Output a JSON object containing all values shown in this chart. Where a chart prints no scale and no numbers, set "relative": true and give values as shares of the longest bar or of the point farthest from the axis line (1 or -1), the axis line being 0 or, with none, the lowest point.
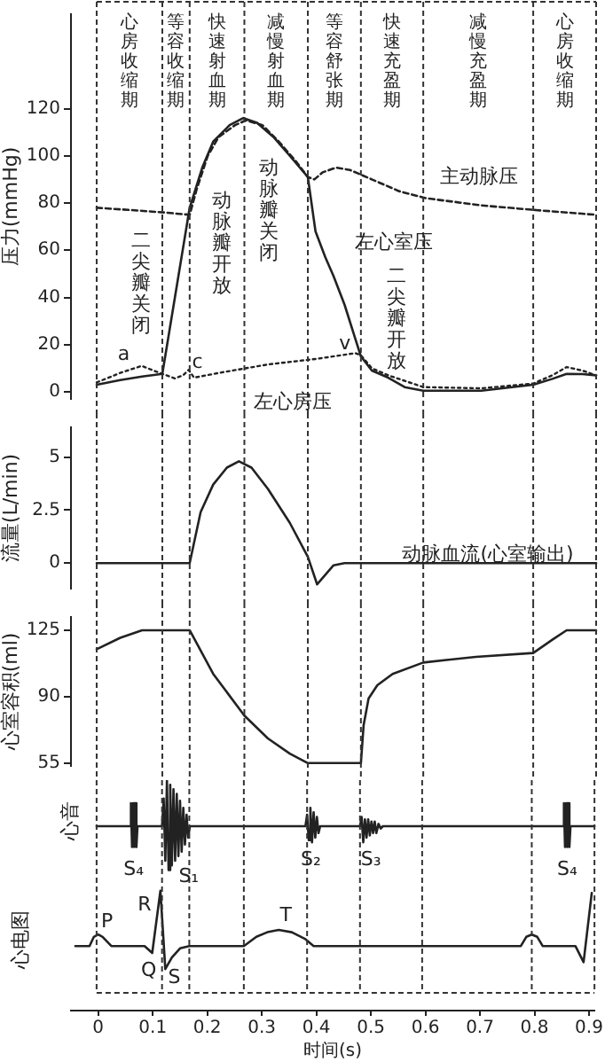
{
  "chart_data": [
    {
      "type": "line",
      "ylabel": "压力(mmHg)",
      "xlim": [
        -0.05,
        0.91
      ],
      "ylim": [
        -3,
        160
      ],
      "yticks": [
        0,
        20,
        40,
        60,
        80,
        100,
        120
      ],
      "tick_labels": "y",
      "grid": false,
      "legend": false,
      "series": [
        {
          "name": "主动脉压",
          "color": "#222222",
          "line_style": "dashed",
          "x": [
            -0.003,
            0.06,
            0.12,
            0.167,
            0.18,
            0.2,
            0.22,
            0.25,
            0.27,
            0.3,
            0.33,
            0.36,
            0.383,
            0.395,
            0.41,
            0.435,
            0.46,
            0.5,
            0.55,
            0.6,
            0.7,
            0.8,
            0.91
          ],
          "values": [
            78,
            77,
            76,
            75,
            86,
            100,
            108,
            113,
            115,
            113,
            106,
            98,
            91,
            90,
            93,
            95,
            94,
            90,
            85,
            82,
            79,
            77,
            75
          ]
        },
        {
          "name": "左心室压",
          "color": "#222222",
          "line_style": "solid",
          "x": [
            -0.003,
            0.04,
            0.08,
            0.117,
            0.14,
            0.167,
            0.19,
            0.21,
            0.24,
            0.265,
            0.29,
            0.32,
            0.35,
            0.383,
            0.397,
            0.415,
            0.43,
            0.45,
            0.48,
            0.5,
            0.53,
            0.56,
            0.594,
            0.7,
            0.795,
            0.83,
            0.856,
            0.885,
            0.91
          ],
          "values": [
            3,
            5,
            6.5,
            7.6,
            40,
            78,
            95,
            106,
            113,
            116,
            114,
            108,
            100,
            91,
            68,
            57,
            49,
            37,
            15,
            9,
            6,
            2,
            0.5,
            0.5,
            3,
            5.5,
            7.6,
            7.5,
            7
          ]
        },
        {
          "name": "左心房压",
          "color": "#222222",
          "line_style": "dotted",
          "x": [
            -0.003,
            0.04,
            0.079,
            0.117,
            0.14,
            0.155,
            0.165,
            0.175,
            0.22,
            0.31,
            0.4,
            0.47,
            0.48,
            0.5,
            0.53,
            0.594,
            0.7,
            0.795,
            0.83,
            0.856,
            0.885,
            0.91
          ],
          "values": [
            4,
            8,
            11,
            7.6,
            5.7,
            7,
            9.3,
            6,
            8,
            11.6,
            14,
            16.4,
            15.5,
            10,
            7,
            2,
            1.5,
            3.5,
            7,
            10.5,
            9,
            7
          ]
        }
      ],
      "ref_lines": [
        {
          "axis": "x",
          "value": -0.003,
          "line_style": "dashed"
        },
        {
          "axis": "x",
          "value": 0.117,
          "line_style": "dashed"
        },
        {
          "axis": "x",
          "value": 0.167,
          "line_style": "dashed"
        },
        {
          "axis": "x",
          "value": 0.267,
          "line_style": "dashed"
        },
        {
          "axis": "x",
          "value": 0.383,
          "line_style": "dashed"
        },
        {
          "axis": "x",
          "value": 0.48,
          "line_style": "dashed"
        },
        {
          "axis": "x",
          "value": 0.594,
          "line_style": "dashed"
        },
        {
          "axis": "x",
          "value": 0.795,
          "line_style": "dashed"
        }
      ],
      "annotations": [
        "心房收缩期",
        "等容收缩期",
        "快速射血期",
        "减慢射血期",
        "等容舒张期",
        "快速充盈期",
        "减慢充盈期",
        "心房收缩期",
        {
          "text": "a",
          "x": 0.079,
          "y": 11
        },
        {
          "text": "c",
          "x": 0.165,
          "y": 9.3
        },
        {
          "text": "v",
          "x": 0.47,
          "y": 16.4
        },
        {
          "text": "二尖瓣关闭",
          "x": 0.117,
          "y": 7.6
        },
        {
          "text": "动脉瓣开放",
          "x": 0.167,
          "y": 78
        },
        {
          "text": "动脉瓣关闭",
          "x": 0.383,
          "y": 91
        },
        {
          "text": "二尖瓣开放",
          "x": 0.48,
          "y": 15.2
        }
      ]
    },
    {
      "type": "line",
      "ylabel": "流量(L/min)",
      "xlim": [
        -0.05,
        0.91
      ],
      "ylim": [
        -1.2,
        6.4
      ],
      "yticks": [
        0,
        {
          "value": 2.5,
          "label": "2.5"
        },
        5
      ],
      "tick_labels": "y",
      "grid": false,
      "legend": false,
      "series": [
        {
          "name": "动脉血流(心室输出)",
          "color": "#222222",
          "line_style": "solid",
          "x": [
            -0.003,
            0.167,
            0.187,
            0.21,
            0.235,
            0.257,
            0.28,
            0.31,
            0.35,
            0.383,
            0.4,
            0.43,
            0.45,
            0.91
          ],
          "values": [
            0,
            0,
            2.4,
            3.7,
            4.5,
            4.8,
            4.5,
            3.5,
            1.9,
            0.3,
            -1,
            -0.1,
            0,
            0
          ]
        }
      ],
      "ref_lines": [
        {
          "axis": "x",
          "value": -0.003,
          "line_style": "dashed"
        },
        {
          "axis": "x",
          "value": 0.117,
          "line_style": "dashed"
        },
        {
          "axis": "x",
          "value": 0.167,
          "line_style": "dashed"
        },
        {
          "axis": "x",
          "value": 0.267,
          "line_style": "dashed"
        },
        {
          "axis": "x",
          "value": 0.383,
          "line_style": "dashed"
        },
        {
          "axis": "x",
          "value": 0.48,
          "line_style": "dashed"
        },
        {
          "axis": "x",
          "value": 0.594,
          "line_style": "dashed"
        },
        {
          "axis": "x",
          "value": 0.795,
          "line_style": "dashed"
        }
      ]
    },
    {
      "type": "line",
      "ylabel": "心室容积(ml)",
      "xlim": [
        -0.05,
        0.91
      ],
      "ylim": [
        53.5,
        132
      ],
      "yticks": [
        55,
        90,
        125
      ],
      "tick_labels": "y",
      "grid": false,
      "legend": false,
      "series": [
        {
          "color": "#222222",
          "line_style": "solid",
          "x": [
            -0.003,
            0.04,
            0.08,
            0.167,
            0.21,
            0.267,
            0.31,
            0.35,
            0.383,
            0.48,
            0.485,
            0.494,
            0.51,
            0.538,
            0.594,
            0.69,
            0.795,
            0.83,
            0.856,
            0.91
          ],
          "values": [
            115,
            121,
            125,
            125,
            102,
            80,
            68,
            60,
            55,
            55,
            75,
            89,
            96,
            102,
            108,
            111,
            113,
            120,
            125,
            125
          ]
        }
      ],
      "ref_lines": [
        {
          "axis": "x",
          "value": -0.003,
          "line_style": "dashed"
        },
        {
          "axis": "x",
          "value": 0.117,
          "line_style": "dashed"
        },
        {
          "axis": "x",
          "value": 0.167,
          "line_style": "dashed"
        },
        {
          "axis": "x",
          "value": 0.267,
          "line_style": "dashed"
        },
        {
          "axis": "x",
          "value": 0.383,
          "line_style": "dashed"
        },
        {
          "axis": "x",
          "value": 0.48,
          "line_style": "dashed"
        },
        {
          "axis": "x",
          "value": 0.594,
          "line_style": "dashed"
        },
        {
          "axis": "x",
          "value": 0.795,
          "line_style": "dashed"
        }
      ]
    },
    {
      "type": "line",
      "xlabel": "时间(s)",
      "xlim": [
        -0.05,
        0.91
      ],
      "xticks": [
        0,
        0.1,
        0.2,
        0.3,
        0.4,
        0.5,
        0.6,
        0.7,
        0.8,
        0.9
      ],
      "relative": true,
      "tick_labels": "x",
      "grid": false,
      "legend": false,
      "series": [
        {
          "name": "心音",
          "color": "#222222",
          "line_style": "solid",
          "x": [
            -0.003,
            0.058,
            0.06,
            0.062,
            0.064,
            0.066,
            0.068,
            0.07,
            0.072,
            0.117,
            0.12,
            0.123,
            0.126,
            0.129,
            0.132,
            0.135,
            0.138,
            0.141,
            0.144,
            0.147,
            0.15,
            0.153,
            0.156,
            0.159,
            0.162,
            0.165,
            0.168,
            0.38,
            0.383,
            0.386,
            0.389,
            0.392,
            0.395,
            0.398,
            0.401,
            0.404,
            0.407,
            0.48,
            0.483,
            0.486,
            0.489,
            0.492,
            0.495,
            0.498,
            0.501,
            0.504,
            0.507,
            0.51,
            0.514,
            0.518,
            0.522,
            0.852,
            0.854,
            0.856,
            0.858,
            0.86,
            0.862,
            0.864,
            0.866,
            0.91
          ],
          "values": [
            0.8,
            0.8,
            0.9,
            0.71,
            0.9,
            0.71,
            0.9,
            0.71,
            0.8,
            0.8,
            0.92,
            0.65,
            1,
            0.61,
            0.98,
            0.63,
            0.96,
            0.65,
            0.94,
            0.67,
            0.91,
            0.69,
            0.88,
            0.72,
            0.85,
            0.75,
            0.8,
            0.8,
            0.85,
            0.74,
            0.88,
            0.73,
            0.86,
            0.75,
            0.84,
            0.77,
            0.8,
            0.8,
            0.84,
            0.73,
            0.83,
            0.75,
            0.83,
            0.76,
            0.82,
            0.77,
            0.82,
            0.77,
            0.81,
            0.79,
            0.8,
            0.8,
            0.9,
            0.71,
            0.9,
            0.71,
            0.9,
            0.71,
            0.8,
            0.8
          ]
        },
        {
          "name": "心电图",
          "color": "#222222",
          "line_style": "solid",
          "x": [
            -0.042,
            -0.016,
            -0.008,
            0,
            0.008,
            0.024,
            0.085,
            0.099,
            0.114,
            0.123,
            0.135,
            0.15,
            0.167,
            0.267,
            0.29,
            0.31,
            0.331,
            0.355,
            0.38,
            0.395,
            0.775,
            0.785,
            0.795,
            0.805,
            0.815,
            0.875,
            0.89,
            0.905
          ],
          "values": [
            0.28,
            0.28,
            0.32,
            0.33,
            0.32,
            0.28,
            0.28,
            0.25,
            0.52,
            0.18,
            0.23,
            0.27,
            0.28,
            0.28,
            0.32,
            0.34,
            0.35,
            0.34,
            0.31,
            0.28,
            0.28,
            0.32,
            0.33,
            0.32,
            0.28,
            0.28,
            0.21,
            0.51
          ]
        }
      ],
      "ref_lines": [
        {
          "axis": "x",
          "value": -0.003,
          "line_style": "dashed"
        },
        {
          "axis": "x",
          "value": 0.117,
          "line_style": "dashed"
        },
        {
          "axis": "x",
          "value": 0.167,
          "line_style": "dashed"
        },
        {
          "axis": "x",
          "value": 0.267,
          "line_style": "dashed"
        },
        {
          "axis": "x",
          "value": 0.383,
          "line_style": "dashed"
        },
        {
          "axis": "x",
          "value": 0.48,
          "line_style": "dashed"
        },
        {
          "axis": "x",
          "value": 0.594,
          "line_style": "dashed"
        },
        {
          "axis": "x",
          "value": 0.795,
          "line_style": "dashed"
        }
      ],
      "annotations": [
        {
          "text": "S₄",
          "x": 0.065,
          "y": 0.71
        },
        {
          "text": "S₁",
          "x": 0.14,
          "y": 0.61
        },
        {
          "text": "S₂",
          "x": 0.39,
          "y": 0.73
        },
        {
          "text": "S₃",
          "x": 0.5,
          "y": 0.73
        },
        {
          "text": "S₄",
          "x": 0.86,
          "y": 0.71
        },
        {
          "text": "P",
          "x": 0,
          "y": 0.33
        },
        {
          "text": "Q",
          "x": 0.099,
          "y": 0.25
        },
        {
          "text": "R",
          "x": 0.114,
          "y": 0.52
        },
        {
          "text": "S",
          "x": 0.123,
          "y": 0.18
        },
        {
          "text": "T",
          "x": 0.331,
          "y": 0.35
        }
      ]
    }
  ]
}
